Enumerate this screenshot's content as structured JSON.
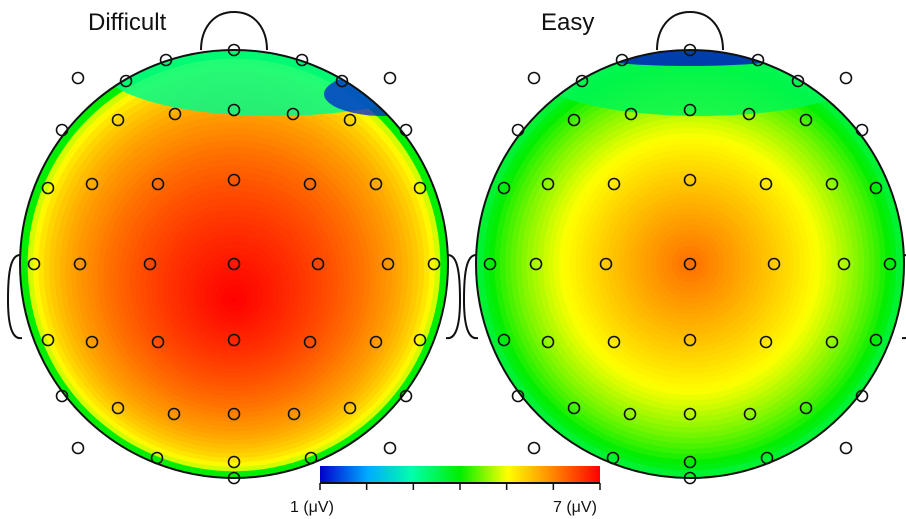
{
  "chart_data": {
    "type": "heatmap",
    "subtype": "scalp-topography",
    "colormap": [
      "#0000cc",
      "#00aaff",
      "#00ffaa",
      "#00ee00",
      "#ffff00",
      "#ff8800",
      "#ff0000"
    ],
    "colorbar": {
      "min_label": "1 (μV)",
      "max_label": "7 (μV)",
      "min": 1,
      "max": 7
    },
    "panels": [
      {
        "title": "Difficult",
        "center_value": 7.0,
        "peak_value": 7.0,
        "rim_value": 4.0,
        "frontal_value": 3.2,
        "min_value": 1.2
      },
      {
        "title": "Easy",
        "center_value": 6.0,
        "peak_value": 6.2,
        "rim_value": 3.7,
        "frontal_value": 3.5,
        "min_value": 1.0
      }
    ]
  }
}
